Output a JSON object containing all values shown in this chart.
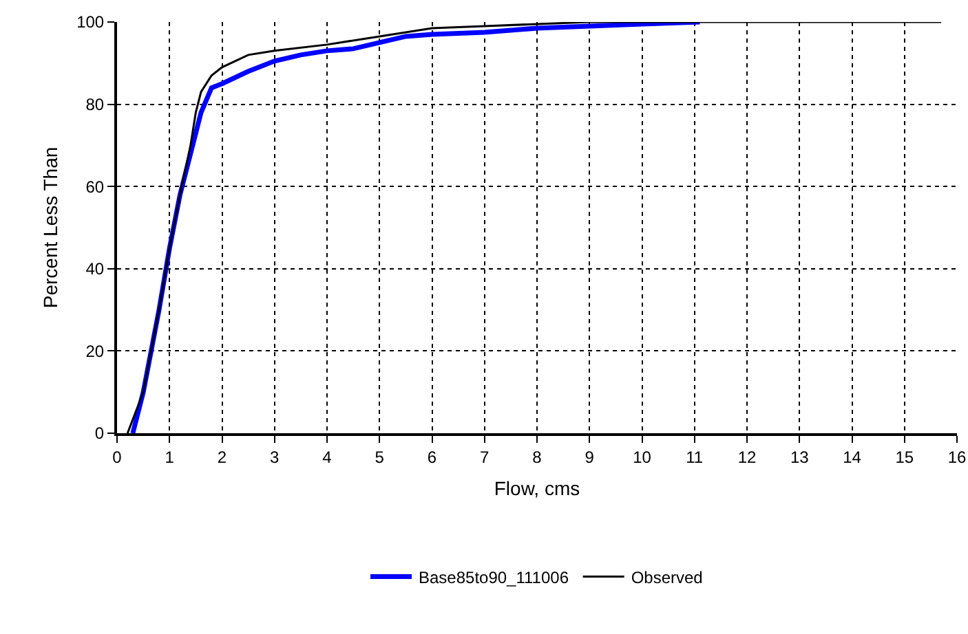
{
  "chart_data": {
    "type": "line",
    "xlabel": "Flow, cms",
    "ylabel": "Percent Less Than",
    "xlim": [
      0,
      16
    ],
    "xticks": [
      0,
      1,
      2,
      3,
      4,
      5,
      6,
      7,
      8,
      9,
      10,
      11,
      12,
      13,
      14,
      15,
      16
    ],
    "ylim": [
      0,
      100
    ],
    "yticks": [
      0,
      20,
      40,
      60,
      80,
      100
    ],
    "grid": true,
    "legend": "bottom",
    "line_style": "solid",
    "marker": "none",
    "series": [
      {
        "name": "Base85to90_111006",
        "color": "#0000ff",
        "x": [
          0.3,
          0.5,
          0.8,
          1.0,
          1.2,
          1.4,
          1.6,
          1.8,
          2,
          2.5,
          3,
          3.5,
          4,
          4.5,
          5,
          5.5,
          6,
          7,
          8,
          9,
          10,
          11.1
        ],
        "values": [
          0,
          10,
          30,
          45,
          58,
          68,
          78,
          84,
          85,
          88,
          90.5,
          92,
          93,
          93.5,
          95,
          96.5,
          97,
          97.5,
          98.5,
          99,
          99.5,
          100
        ]
      },
      {
        "name": "Observed",
        "color": "#000000",
        "x": [
          0.2,
          0.5,
          0.8,
          1.0,
          1.2,
          1.4,
          1.5,
          1.6,
          1.8,
          2,
          2.5,
          3,
          4,
          5,
          6,
          7,
          8,
          9,
          15.7
        ],
        "values": [
          0,
          10,
          30,
          45,
          58,
          70,
          78,
          83,
          87,
          89,
          92,
          93,
          94.5,
          96.5,
          98.5,
          99,
          99.5,
          100,
          100
        ]
      }
    ]
  }
}
